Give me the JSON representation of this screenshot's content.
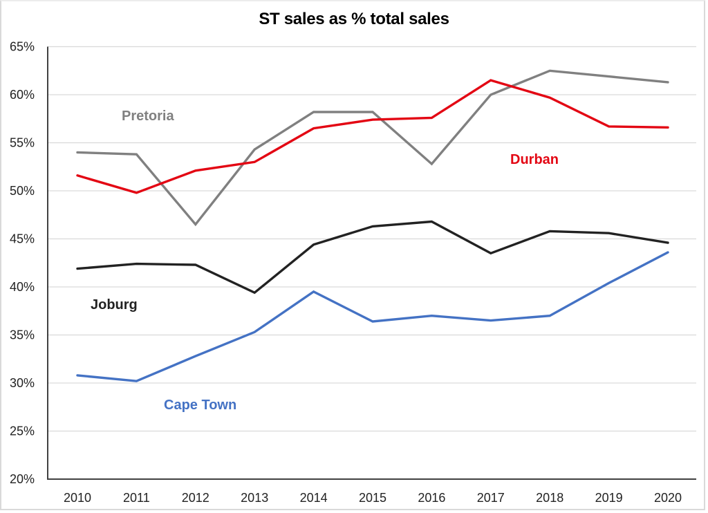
{
  "chart_data": {
    "type": "line",
    "title": "ST sales as % total sales",
    "xlabel": "",
    "ylabel": "",
    "categories": [
      "2010",
      "2011",
      "2012",
      "2013",
      "2014",
      "2015",
      "2016",
      "2017",
      "2018",
      "2019",
      "2020"
    ],
    "ylim": [
      20,
      65
    ],
    "ytick_step": 5,
    "ytick_labels": [
      "20%",
      "25%",
      "30%",
      "35%",
      "40%",
      "45%",
      "50%",
      "55%",
      "60%",
      "65%"
    ],
    "grid": "horizontal",
    "legend": "inline labels",
    "series": [
      {
        "name": "Pretoria",
        "color": "#808080",
        "values": [
          54.0,
          53.8,
          46.5,
          54.3,
          58.2,
          58.2,
          52.8,
          60.0,
          62.5,
          61.9,
          61.3
        ],
        "label_anchor": {
          "x_category": "2011",
          "y_value": 60.0,
          "align": "start-offset"
        }
      },
      {
        "name": "Durban",
        "color": "#E30613",
        "values": [
          51.6,
          49.8,
          52.1,
          53.0,
          56.5,
          57.4,
          57.6,
          61.5,
          59.7,
          56.7,
          56.6
        ],
        "label_anchor": {
          "x_category": "2018",
          "y_value": 53.4
        }
      },
      {
        "name": "Joburg",
        "color": "#222222",
        "values": [
          41.9,
          42.4,
          42.3,
          39.4,
          44.4,
          46.3,
          46.8,
          43.5,
          45.8,
          45.6,
          44.6
        ],
        "label_anchor": {
          "x_category": "2010",
          "y_value": 38.3
        }
      },
      {
        "name": "Cape Town",
        "color": "#4472C4",
        "values": [
          30.8,
          30.2,
          32.8,
          35.3,
          39.5,
          36.4,
          37.0,
          36.5,
          37.0,
          40.4,
          43.6
        ],
        "label_anchor": {
          "x_category": "2012",
          "y_value": 28.2
        }
      }
    ]
  }
}
